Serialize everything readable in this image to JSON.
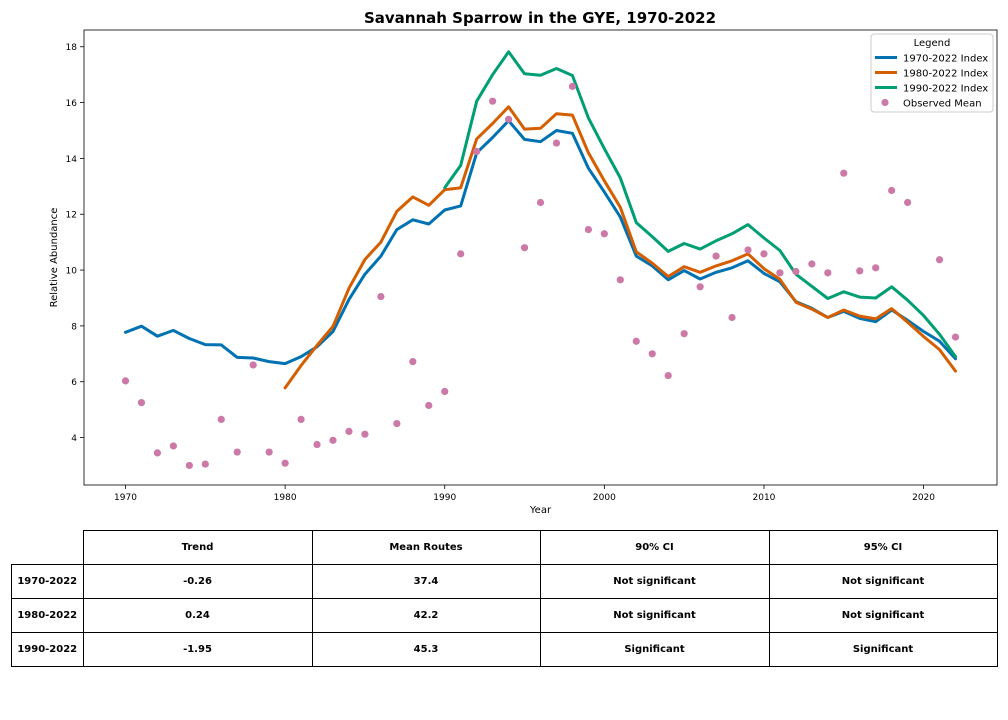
{
  "chart_data": {
    "type": "line",
    "title": "Savannah Sparrow in the GYE, 1970-2022",
    "xlabel": "Year",
    "ylabel": "Relative Abundance",
    "xlim": [
      1967.4,
      2024.6
    ],
    "ylim": [
      2.3,
      18.6
    ],
    "xticks": [
      1970,
      1980,
      1990,
      2000,
      2010,
      2020
    ],
    "yticks": [
      4,
      6,
      8,
      10,
      12,
      14,
      16,
      18
    ],
    "legend": {
      "title": "Legend",
      "placement": "top-right"
    },
    "series": [
      {
        "name": "1970-2022 Index",
        "color": "#0072b2",
        "x": [
          1970,
          1971,
          1972,
          1973,
          1974,
          1975,
          1976,
          1977,
          1978,
          1979,
          1980,
          1981,
          1982,
          1983,
          1984,
          1985,
          1986,
          1987,
          1988,
          1989,
          1990,
          1991,
          1992,
          1993,
          1994,
          1995,
          1996,
          1997,
          1998,
          1999,
          2000,
          2001,
          2002,
          2003,
          2004,
          2005,
          2006,
          2007,
          2008,
          2009,
          2010,
          2011,
          2012,
          2013,
          2014,
          2015,
          2016,
          2017,
          2018,
          2019,
          2020,
          2021,
          2022
        ],
        "values": [
          7.77,
          7.99,
          7.63,
          7.84,
          7.55,
          7.33,
          7.32,
          6.87,
          6.85,
          6.72,
          6.65,
          6.9,
          7.25,
          7.8,
          8.95,
          9.85,
          10.5,
          11.45,
          11.8,
          11.65,
          12.15,
          12.3,
          14.2,
          14.75,
          15.35,
          14.68,
          14.6,
          15.0,
          14.9,
          13.65,
          12.8,
          11.9,
          10.5,
          10.15,
          9.65,
          9.98,
          9.68,
          9.92,
          10.08,
          10.33,
          9.88,
          9.58,
          8.87,
          8.63,
          8.3,
          8.52,
          8.27,
          8.15,
          8.57,
          8.2,
          7.8,
          7.45,
          6.82
        ]
      },
      {
        "name": "1980-2022 Index",
        "color": "#d55e00",
        "x": [
          1980,
          1981,
          1982,
          1983,
          1984,
          1985,
          1986,
          1987,
          1988,
          1989,
          1990,
          1991,
          1992,
          1993,
          1994,
          1995,
          1996,
          1997,
          1998,
          1999,
          2000,
          2001,
          2002,
          2003,
          2004,
          2005,
          2006,
          2007,
          2008,
          2009,
          2010,
          2011,
          2012,
          2013,
          2014,
          2015,
          2016,
          2017,
          2018,
          2019,
          2020,
          2021,
          2022
        ],
        "values": [
          5.78,
          6.58,
          7.3,
          7.98,
          9.35,
          10.38,
          11.0,
          12.1,
          12.62,
          12.32,
          12.88,
          12.95,
          14.7,
          15.25,
          15.85,
          15.05,
          15.08,
          15.6,
          15.55,
          14.2,
          13.2,
          12.25,
          10.65,
          10.25,
          9.77,
          10.12,
          9.92,
          10.15,
          10.33,
          10.58,
          10.05,
          9.67,
          8.85,
          8.6,
          8.3,
          8.57,
          8.35,
          8.25,
          8.62,
          8.13,
          7.62,
          7.15,
          6.38
        ]
      },
      {
        "name": "1990-2022 Index",
        "color": "#009e73",
        "x": [
          1990,
          1991,
          1992,
          1993,
          1994,
          1995,
          1996,
          1997,
          1998,
          1999,
          2000,
          2001,
          2002,
          2003,
          2004,
          2005,
          2006,
          2007,
          2008,
          2009,
          2010,
          2011,
          2012,
          2013,
          2014,
          2015,
          2016,
          2017,
          2018,
          2019,
          2020,
          2021,
          2022
        ],
        "values": [
          12.95,
          13.75,
          16.05,
          17.0,
          17.82,
          17.03,
          16.98,
          17.22,
          16.97,
          15.45,
          14.35,
          13.3,
          11.7,
          11.2,
          10.67,
          10.95,
          10.75,
          11.05,
          11.3,
          11.63,
          11.15,
          10.7,
          9.85,
          9.42,
          8.98,
          9.22,
          9.03,
          9.0,
          9.4,
          8.92,
          8.37,
          7.7,
          6.9
        ]
      },
      {
        "name": "Observed Mean",
        "type": "scatter",
        "color": "#cc79a7",
        "x": [
          1970,
          1971,
          1972,
          1973,
          1974,
          1975,
          1976,
          1977,
          1978,
          1979,
          1980,
          1981,
          1982,
          1983,
          1984,
          1985,
          1986,
          1987,
          1988,
          1989,
          1990,
          1991,
          1992,
          1993,
          1994,
          1995,
          1996,
          1997,
          1998,
          1999,
          2000,
          2001,
          2002,
          2003,
          2004,
          2005,
          2006,
          2007,
          2008,
          2009,
          2010,
          2011,
          2012,
          2013,
          2014,
          2015,
          2016,
          2017,
          2018,
          2019,
          2020,
          2021,
          2022
        ],
        "values": [
          6.03,
          5.25,
          3.45,
          3.7,
          3.0,
          3.05,
          4.65,
          3.48,
          6.6,
          3.48,
          3.08,
          4.65,
          3.75,
          3.9,
          4.22,
          4.12,
          9.05,
          4.5,
          6.72,
          5.15,
          5.65,
          10.58,
          14.25,
          16.05,
          15.4,
          10.8,
          12.42,
          14.55,
          16.58,
          11.45,
          11.3,
          9.65,
          7.45,
          7.0,
          6.22,
          7.72,
          9.4,
          10.5,
          8.3,
          10.72,
          10.58,
          9.9,
          9.95,
          10.22,
          9.9,
          13.47,
          9.97,
          10.08,
          12.85,
          12.42,
          null,
          10.37,
          7.6
        ]
      }
    ],
    "table": {
      "columns": [
        "Trend",
        "Mean Routes",
        "90% CI",
        "95% CI"
      ],
      "rows": [
        {
          "label": "1970-2022",
          "cells": [
            "-0.26",
            "37.4",
            "Not significant",
            "Not significant"
          ]
        },
        {
          "label": "1980-2022",
          "cells": [
            "0.24",
            "42.2",
            "Not significant",
            "Not significant"
          ]
        },
        {
          "label": "1990-2022",
          "cells": [
            "-1.95",
            "45.3",
            "Significant",
            "Significant"
          ]
        }
      ]
    }
  }
}
